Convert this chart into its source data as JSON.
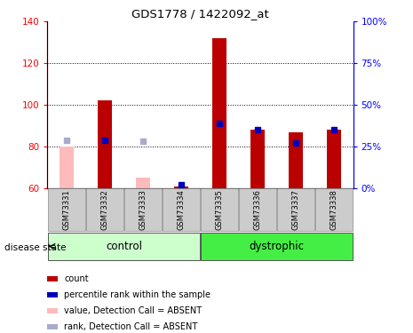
{
  "title": "GDS1778 / 1422092_at",
  "samples": [
    "GSM73331",
    "GSM73332",
    "GSM73333",
    "GSM73334",
    "GSM73335",
    "GSM73336",
    "GSM73337",
    "GSM73338"
  ],
  "groups": {
    "control": [
      0,
      1,
      2,
      3
    ],
    "dystrophic": [
      4,
      5,
      6,
      7
    ]
  },
  "count_values": [
    null,
    102,
    null,
    61,
    132,
    88,
    87,
    88
  ],
  "count_absent_values": [
    80,
    null,
    65,
    null,
    null,
    null,
    null,
    null
  ],
  "percentile_values": [
    null,
    29,
    null,
    2,
    39,
    35,
    27,
    35
  ],
  "percentile_absent_values": [
    29,
    null,
    28,
    null,
    null,
    null,
    null,
    null
  ],
  "ylim_left": [
    60,
    140
  ],
  "ylim_right": [
    0,
    100
  ],
  "yticks_left": [
    60,
    80,
    100,
    120,
    140
  ],
  "yticks_right": [
    0,
    25,
    50,
    75,
    100
  ],
  "ytick_labels_right": [
    "0%",
    "25%",
    "50%",
    "75%",
    "100%"
  ],
  "color_count": "#bb0000",
  "color_count_absent": "#ffbbbb",
  "color_percentile": "#0000bb",
  "color_percentile_absent": "#aaaacc",
  "color_control_bg": "#ccffcc",
  "color_dystrophic_bg": "#44ee44",
  "color_sample_box": "#cccccc",
  "bar_width": 0.55,
  "marker_size": 4,
  "legend_items": [
    {
      "label": "count",
      "color": "#bb0000"
    },
    {
      "label": "percentile rank within the sample",
      "color": "#0000bb"
    },
    {
      "label": "value, Detection Call = ABSENT",
      "color": "#ffbbbb"
    },
    {
      "label": "rank, Detection Call = ABSENT",
      "color": "#aaaacc"
    }
  ]
}
